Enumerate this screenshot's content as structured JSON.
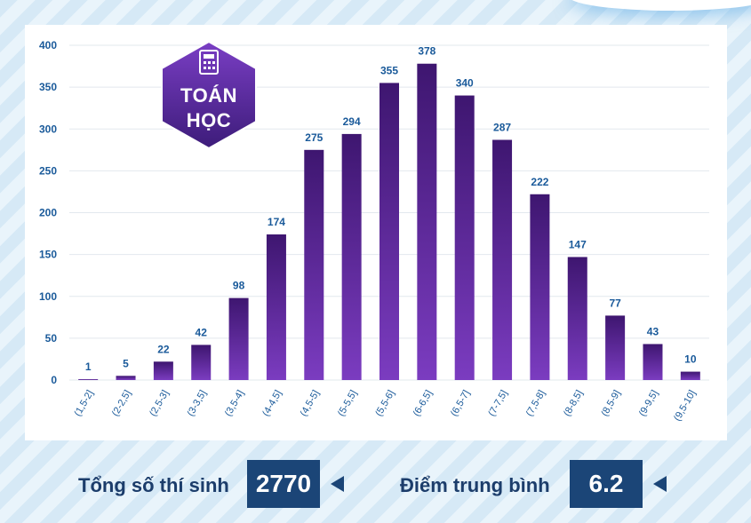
{
  "badge": {
    "icon": "calculator-icon",
    "line1": "TOÁN",
    "line2": "HỌC",
    "colors": {
      "top": "#7a3ec4",
      "bottom": "#3d1c7a"
    }
  },
  "chart_data": {
    "type": "bar",
    "categories": [
      "(1,5-2]",
      "(2-2,5]",
      "(2,5-3]",
      "(3-3,5]",
      "(3,5-4]",
      "(4-4,5]",
      "(4,5-5]",
      "(5-5,5]",
      "(5,5-6]",
      "(6-6,5]",
      "(6,5-7]",
      "(7-7,5]",
      "(7,5-8]",
      "(8-8,5]",
      "(8,5-9]",
      "(9-9,5]",
      "(9,5-10]"
    ],
    "values": [
      1,
      5,
      22,
      42,
      98,
      174,
      275,
      294,
      355,
      378,
      340,
      287,
      222,
      147,
      77,
      43,
      10
    ],
    "ylim": [
      0,
      400
    ],
    "yticks": [
      0,
      50,
      100,
      150,
      200,
      250,
      300,
      350,
      400
    ],
    "grid": true,
    "colors": {
      "bar_top": "#3e1670",
      "bar_bottom": "#7b3cc0",
      "axis_text": "#1a5a9a",
      "label_text": "#1a5a9a",
      "grid": "#e2e8ee"
    }
  },
  "summary": {
    "total_label": "Tổng số thí sinh",
    "total_value": "2770",
    "average_label": "Điểm trung bình",
    "average_value": "6.2"
  }
}
